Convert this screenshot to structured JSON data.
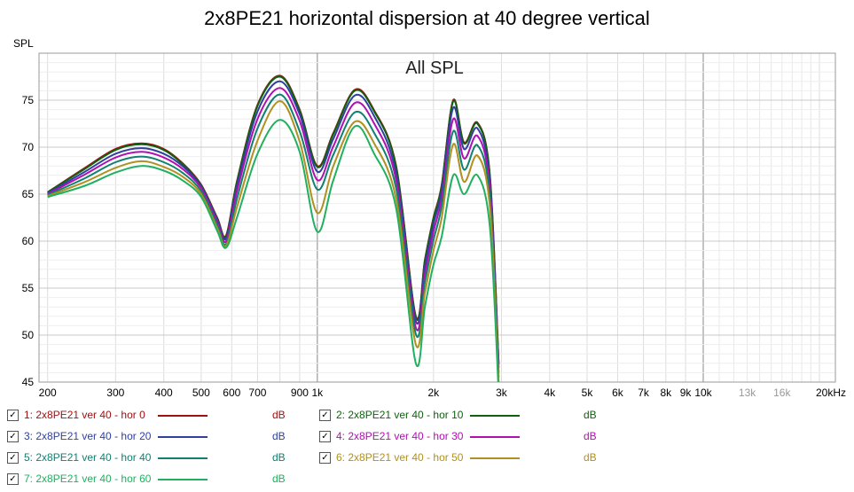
{
  "chart_data": {
    "type": "line",
    "title": "2x8PE21 horizontal dispersion at 40 degree vertical",
    "ylabel": "SPL",
    "inner_title": "All SPL",
    "x_scale": "log",
    "xlim": [
      190,
      22000
    ],
    "ylim": [
      45,
      80
    ],
    "y_ticks": [
      "45",
      "50",
      "55",
      "60",
      "65",
      "70",
      "75"
    ],
    "y_tick_values": [
      45,
      50,
      55,
      60,
      65,
      70,
      75
    ],
    "x_ticks": [
      {
        "v": 200,
        "label": "200"
      },
      {
        "v": 300,
        "label": "300"
      },
      {
        "v": 400,
        "label": "400"
      },
      {
        "v": 500,
        "label": "500"
      },
      {
        "v": 600,
        "label": "600"
      },
      {
        "v": 700,
        "label": "700"
      },
      {
        "v": 900,
        "label": "900"
      },
      {
        "v": 1000,
        "label": "1k"
      },
      {
        "v": 2000,
        "label": "2k"
      },
      {
        "v": 3000,
        "label": "3k"
      },
      {
        "v": 4000,
        "label": "4k"
      },
      {
        "v": 5000,
        "label": "5k"
      },
      {
        "v": 6000,
        "label": "6k"
      },
      {
        "v": 7000,
        "label": "7k"
      },
      {
        "v": 8000,
        "label": "8k"
      },
      {
        "v": 9000,
        "label": "9k"
      },
      {
        "v": 10000,
        "label": "10k"
      },
      {
        "v": 13000,
        "label": "13k",
        "muted": true
      },
      {
        "v": 16000,
        "label": "16k",
        "muted": true
      },
      {
        "v": 20000,
        "label": "20kHz"
      }
    ],
    "x": [
      200,
      250,
      300,
      350,
      400,
      450,
      500,
      550,
      580,
      620,
      700,
      800,
      900,
      1000,
      1100,
      1250,
      1400,
      1600,
      1800,
      1900,
      2000,
      2100,
      2250,
      2400,
      2600,
      2800,
      2950
    ],
    "series": [
      {
        "name": "1: 2x8PE21 ver 40 - hor 0",
        "color": "#a01010",
        "values": [
          65.2,
          67.8,
          69.8,
          70.4,
          69.8,
          68.2,
          66.0,
          62.5,
          60.6,
          66.5,
          74.5,
          77.6,
          74.0,
          68.0,
          71.5,
          76.1,
          74.0,
          68.0,
          52.0,
          58.0,
          62.5,
          66.0,
          75.0,
          70.5,
          72.6,
          67.0,
          47.0
        ]
      },
      {
        "name": "2: 2x8PE21 ver 40 - hor 10",
        "color": "#106010",
        "values": [
          65.2,
          67.7,
          69.7,
          70.3,
          69.7,
          68.1,
          65.9,
          62.4,
          60.5,
          66.4,
          74.4,
          77.5,
          73.9,
          67.9,
          71.4,
          76.0,
          73.9,
          67.9,
          51.9,
          57.9,
          62.4,
          65.9,
          74.9,
          70.4,
          72.5,
          66.9,
          46.9
        ]
      },
      {
        "name": "3: 2x8PE21 ver 40 - hor 20",
        "color": "#3040a0",
        "values": [
          65.1,
          67.4,
          69.3,
          69.9,
          69.3,
          67.9,
          65.8,
          62.3,
          60.3,
          66.0,
          73.8,
          77.0,
          73.5,
          67.4,
          70.9,
          75.5,
          73.4,
          67.2,
          51.5,
          57.3,
          61.8,
          65.4,
          74.2,
          69.8,
          72.0,
          66.2,
          46.5
        ]
      },
      {
        "name": "4: 2x8PE21 ver 40 - hor 30",
        "color": "#b010b0",
        "values": [
          65.0,
          67.1,
          68.9,
          69.5,
          68.9,
          67.6,
          65.6,
          62.0,
          60.0,
          65.4,
          73.0,
          76.3,
          72.8,
          66.5,
          70.1,
          74.7,
          72.6,
          66.5,
          50.8,
          56.5,
          61.0,
          64.6,
          73.0,
          68.8,
          71.2,
          65.5,
          46.0
        ]
      },
      {
        "name": "5: 2x8PE21 ver 40 - hor 40",
        "color": "#108070",
        "values": [
          64.9,
          66.7,
          68.4,
          69.0,
          68.4,
          67.2,
          65.3,
          61.7,
          59.7,
          64.6,
          72.0,
          75.6,
          71.7,
          65.5,
          69.2,
          73.7,
          71.6,
          65.6,
          50.1,
          55.6,
          60.1,
          63.7,
          71.7,
          67.6,
          70.2,
          64.6,
          45.5
        ]
      },
      {
        "name": "6: 2x8PE21 ver 40 - hor 50",
        "color": "#b09020",
        "values": [
          64.8,
          66.3,
          67.8,
          68.5,
          67.9,
          66.8,
          65.0,
          61.4,
          59.5,
          63.7,
          70.7,
          74.9,
          70.6,
          63.0,
          68.0,
          72.7,
          70.5,
          64.5,
          49.0,
          54.5,
          59.0,
          62.5,
          70.3,
          66.3,
          69.1,
          63.6,
          45.0
        ]
      },
      {
        "name": "7: 2x8PE21 ver 40 - hor 60",
        "color": "#20b060",
        "values": [
          64.7,
          65.9,
          67.3,
          68.0,
          67.5,
          66.4,
          64.7,
          61.1,
          59.3,
          62.6,
          69.3,
          72.9,
          69.5,
          61.0,
          66.5,
          72.2,
          69.4,
          63.5,
          47.0,
          53.0,
          57.5,
          60.5,
          67.0,
          65.0,
          67.0,
          61.5,
          44.0
        ]
      }
    ]
  },
  "legend_unit": "dB"
}
